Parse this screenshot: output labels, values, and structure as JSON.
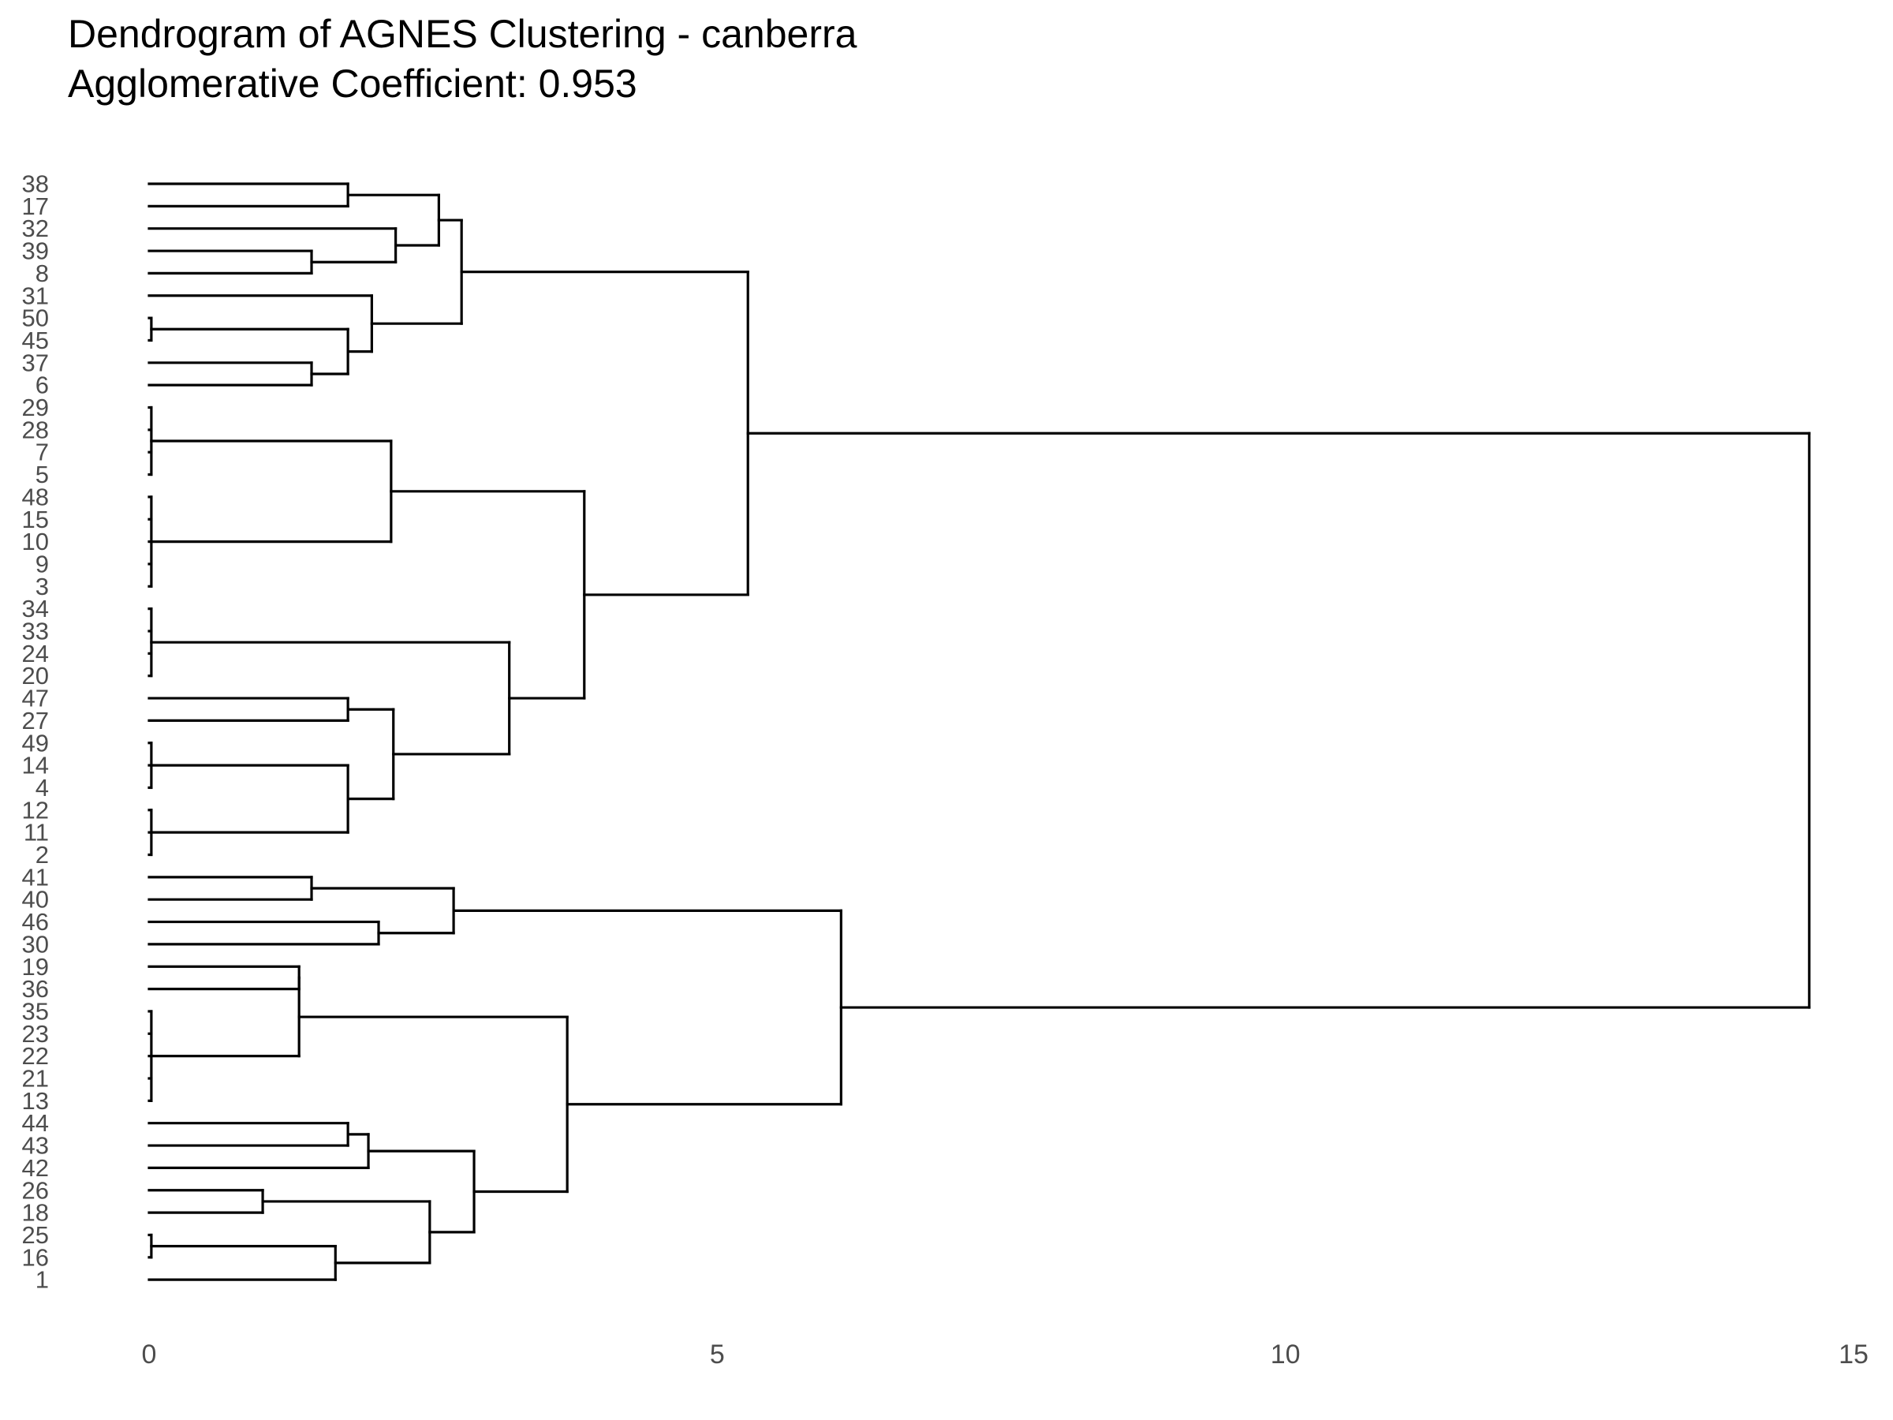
{
  "chart_data": {
    "type": "dendrogram",
    "title": "Dendrogram of AGNES Clustering - canberra",
    "subtitle": "Agglomerative Coefficient: 0.953",
    "orientation": "horizontal",
    "xlim": [
      0,
      15
    ],
    "x_ticks": [
      "0",
      "5",
      "10",
      "15"
    ],
    "grid": false,
    "leaves": [
      38,
      17,
      32,
      39,
      8,
      31,
      50,
      45,
      37,
      6,
      29,
      28,
      7,
      5,
      48,
      15,
      10,
      9,
      3,
      34,
      33,
      24,
      20,
      47,
      27,
      49,
      14,
      4,
      12,
      11,
      2,
      41,
      40,
      46,
      30,
      19,
      36,
      35,
      23,
      22,
      21,
      13,
      44,
      43,
      42,
      26,
      18,
      25,
      16,
      1
    ],
    "merges": [
      {
        "id": "n1",
        "children": [
          "38",
          "17"
        ],
        "height": 1.75
      },
      {
        "id": "n2",
        "children": [
          "39",
          "8"
        ],
        "height": 1.43
      },
      {
        "id": "n3",
        "children": [
          "32",
          "n2"
        ],
        "height": 2.17
      },
      {
        "id": "n4",
        "children": [
          "n1",
          "n3"
        ],
        "height": 2.55
      },
      {
        "id": "n5",
        "children": [
          "50",
          "45"
        ],
        "height": 0.02
      },
      {
        "id": "n6",
        "children": [
          "37",
          "6"
        ],
        "height": 1.43
      },
      {
        "id": "n7",
        "children": [
          "n5",
          "n6"
        ],
        "height": 1.75
      },
      {
        "id": "n8",
        "children": [
          "31",
          "n7"
        ],
        "height": 1.96
      },
      {
        "id": "n9",
        "children": [
          "n4",
          "n8"
        ],
        "height": 2.75
      },
      {
        "id": "n10",
        "children": [
          "29",
          "28",
          "7",
          "5"
        ],
        "height": 0.02
      },
      {
        "id": "n11",
        "children": [
          "48",
          "15",
          "10",
          "9",
          "3"
        ],
        "height": 0.02
      },
      {
        "id": "n12",
        "children": [
          "n10",
          "n11"
        ],
        "height": 2.13
      },
      {
        "id": "n13",
        "children": [
          "34",
          "33",
          "24",
          "20"
        ],
        "height": 0.02
      },
      {
        "id": "n14",
        "children": [
          "47",
          "27"
        ],
        "height": 1.75
      },
      {
        "id": "n15",
        "children": [
          "49",
          "14",
          "4"
        ],
        "height": 0.02
      },
      {
        "id": "n16",
        "children": [
          "12",
          "11",
          "2"
        ],
        "height": 0.02
      },
      {
        "id": "n17",
        "children": [
          "n15",
          "n16"
        ],
        "height": 1.75
      },
      {
        "id": "n18",
        "children": [
          "n14",
          "n17"
        ],
        "height": 2.15
      },
      {
        "id": "n19",
        "children": [
          "n13",
          "n18"
        ],
        "height": 3.17
      },
      {
        "id": "n20",
        "children": [
          "n12",
          "n19"
        ],
        "height": 3.83
      },
      {
        "id": "n21",
        "children": [
          "n9",
          "n20"
        ],
        "height": 5.27
      },
      {
        "id": "n22",
        "children": [
          "41",
          "40"
        ],
        "height": 1.43
      },
      {
        "id": "n23",
        "children": [
          "46",
          "30"
        ],
        "height": 2.02
      },
      {
        "id": "n24",
        "children": [
          "n22",
          "n23"
        ],
        "height": 2.68
      },
      {
        "id": "n25",
        "children": [
          "19",
          "36"
        ],
        "height": 1.32
      },
      {
        "id": "n26",
        "children": [
          "35",
          "23",
          "22",
          "21",
          "13"
        ],
        "height": 0.02
      },
      {
        "id": "n27",
        "children": [
          "n25",
          "n26"
        ],
        "height": 1.32
      },
      {
        "id": "n28",
        "children": [
          "44",
          "43"
        ],
        "height": 1.75
      },
      {
        "id": "n29",
        "children": [
          "n28",
          "42"
        ],
        "height": 1.93
      },
      {
        "id": "n30",
        "children": [
          "26",
          "18"
        ],
        "height": 1.0
      },
      {
        "id": "n31",
        "children": [
          "25",
          "16"
        ],
        "height": 0.02
      },
      {
        "id": "n32",
        "children": [
          "n31",
          "1"
        ],
        "height": 1.64
      },
      {
        "id": "n33",
        "children": [
          "n30",
          "n32"
        ],
        "height": 2.47
      },
      {
        "id": "n34",
        "children": [
          "n29",
          "n33"
        ],
        "height": 2.86
      },
      {
        "id": "n35",
        "children": [
          "n27",
          "n34"
        ],
        "height": 3.68
      },
      {
        "id": "n36",
        "children": [
          "n24",
          "n35"
        ],
        "height": 6.09
      },
      {
        "id": "n37",
        "children": [
          "n21",
          "n36"
        ],
        "height": 14.61
      }
    ]
  }
}
